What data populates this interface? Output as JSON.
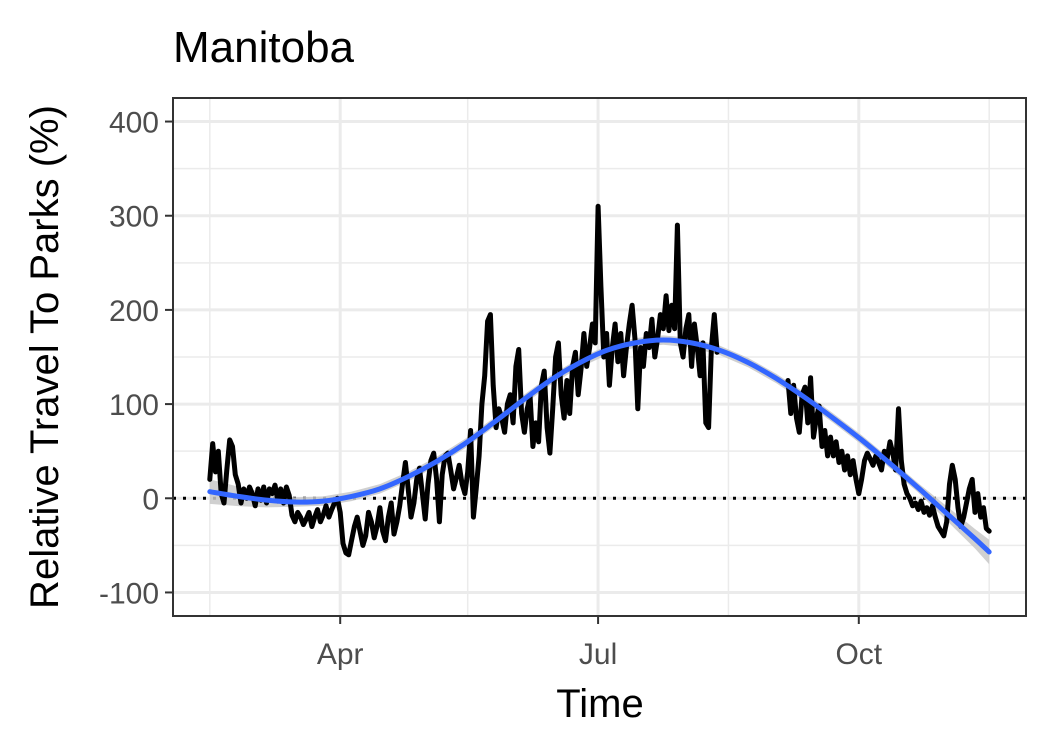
{
  "chart_data": {
    "type": "line",
    "title": "Manitoba",
    "xlabel": "Time",
    "ylabel": "Relative Travel To Parks (%)",
    "ylim": [
      -125,
      425
    ],
    "xlim": [
      "2020-02-02",
      "2020-11-29"
    ],
    "grid": true,
    "x_ticks": [
      {
        "date": "2020-04-01",
        "label": "Apr"
      },
      {
        "date": "2020-07-01",
        "label": "Jul"
      },
      {
        "date": "2020-10-01",
        "label": "Oct"
      }
    ],
    "y_ticks": [
      {
        "value": 400,
        "label": "400"
      },
      {
        "value": 300,
        "label": "300"
      },
      {
        "value": 200,
        "label": "200"
      },
      {
        "value": 100,
        "label": "100"
      },
      {
        "value": 0,
        "label": "0"
      },
      {
        "value": -100,
        "label": "-100"
      }
    ],
    "reference_line": {
      "y": 0,
      "style": "dotted"
    },
    "colors": {
      "raw": "#000000",
      "smooth": "#3366ff",
      "band": "#c8c8c8",
      "grid": "#ebebeb"
    },
    "series": [
      {
        "kind": "raw",
        "points": [
          [
            "2020-02-15",
            20
          ],
          [
            "2020-02-16",
            58
          ],
          [
            "2020-02-17",
            28
          ],
          [
            "2020-02-18",
            50
          ],
          [
            "2020-02-19",
            5
          ],
          [
            "2020-02-20",
            -5
          ],
          [
            "2020-02-21",
            30
          ],
          [
            "2020-02-22",
            62
          ],
          [
            "2020-02-23",
            55
          ],
          [
            "2020-02-24",
            25
          ],
          [
            "2020-02-25",
            15
          ],
          [
            "2020-02-26",
            -5
          ],
          [
            "2020-02-27",
            10
          ],
          [
            "2020-02-28",
            0
          ],
          [
            "2020-02-29",
            12
          ],
          [
            "2020-03-01",
            5
          ],
          [
            "2020-03-02",
            -8
          ],
          [
            "2020-03-03",
            10
          ],
          [
            "2020-03-04",
            -2
          ],
          [
            "2020-03-05",
            12
          ],
          [
            "2020-03-06",
            -5
          ],
          [
            "2020-03-07",
            10
          ],
          [
            "2020-03-08",
            5
          ],
          [
            "2020-03-09",
            14
          ],
          [
            "2020-03-10",
            -3
          ],
          [
            "2020-03-11",
            10
          ],
          [
            "2020-03-12",
            -5
          ],
          [
            "2020-03-13",
            12
          ],
          [
            "2020-03-14",
            3
          ],
          [
            "2020-03-15",
            -18
          ],
          [
            "2020-03-16",
            -25
          ],
          [
            "2020-03-17",
            -15
          ],
          [
            "2020-03-18",
            -20
          ],
          [
            "2020-03-19",
            -28
          ],
          [
            "2020-03-20",
            -22
          ],
          [
            "2020-03-21",
            -15
          ],
          [
            "2020-03-22",
            -30
          ],
          [
            "2020-03-23",
            -20
          ],
          [
            "2020-03-24",
            -12
          ],
          [
            "2020-03-25",
            -25
          ],
          [
            "2020-03-26",
            -18
          ],
          [
            "2020-03-27",
            -8
          ],
          [
            "2020-03-28",
            -20
          ],
          [
            "2020-03-29",
            -12
          ],
          [
            "2020-03-30",
            -5
          ],
          [
            "2020-03-31",
            0
          ],
          [
            "2020-04-01",
            -15
          ],
          [
            "2020-04-02",
            -48
          ],
          [
            "2020-04-03",
            -58
          ],
          [
            "2020-04-04",
            -60
          ],
          [
            "2020-04-05",
            -45
          ],
          [
            "2020-04-06",
            -30
          ],
          [
            "2020-04-07",
            -20
          ],
          [
            "2020-04-08",
            -35
          ],
          [
            "2020-04-09",
            -50
          ],
          [
            "2020-04-10",
            -40
          ],
          [
            "2020-04-11",
            -15
          ],
          [
            "2020-04-12",
            -25
          ],
          [
            "2020-04-13",
            -42
          ],
          [
            "2020-04-14",
            -30
          ],
          [
            "2020-04-15",
            -10
          ],
          [
            "2020-04-16",
            -35
          ],
          [
            "2020-04-17",
            -45
          ],
          [
            "2020-04-18",
            -20
          ],
          [
            "2020-04-19",
            -5
          ],
          [
            "2020-04-20",
            -38
          ],
          [
            "2020-04-21",
            -25
          ],
          [
            "2020-04-22",
            -8
          ],
          [
            "2020-04-23",
            15
          ],
          [
            "2020-04-24",
            38
          ],
          [
            "2020-04-25",
            10
          ],
          [
            "2020-04-26",
            -20
          ],
          [
            "2020-04-27",
            -5
          ],
          [
            "2020-04-28",
            20
          ],
          [
            "2020-04-29",
            32
          ],
          [
            "2020-04-30",
            5
          ],
          [
            "2020-05-01",
            -22
          ],
          [
            "2020-05-02",
            15
          ],
          [
            "2020-05-03",
            40
          ],
          [
            "2020-05-04",
            48
          ],
          [
            "2020-05-05",
            20
          ],
          [
            "2020-05-06",
            -25
          ],
          [
            "2020-05-07",
            25
          ],
          [
            "2020-05-08",
            45
          ],
          [
            "2020-05-09",
            48
          ],
          [
            "2020-05-10",
            30
          ],
          [
            "2020-05-11",
            10
          ],
          [
            "2020-05-12",
            22
          ],
          [
            "2020-05-13",
            35
          ],
          [
            "2020-05-14",
            15
          ],
          [
            "2020-05-15",
            5
          ],
          [
            "2020-05-16",
            28
          ],
          [
            "2020-05-17",
            72
          ],
          [
            "2020-05-18",
            -20
          ],
          [
            "2020-05-19",
            10
          ],
          [
            "2020-05-20",
            45
          ],
          [
            "2020-05-21",
            100
          ],
          [
            "2020-05-22",
            130
          ],
          [
            "2020-05-23",
            188
          ],
          [
            "2020-05-24",
            195
          ],
          [
            "2020-05-25",
            120
          ],
          [
            "2020-05-26",
            75
          ],
          [
            "2020-05-27",
            95
          ],
          [
            "2020-05-28",
            85
          ],
          [
            "2020-05-29",
            70
          ],
          [
            "2020-05-30",
            100
          ],
          [
            "2020-05-31",
            110
          ],
          [
            "2020-06-01",
            80
          ],
          [
            "2020-06-02",
            140
          ],
          [
            "2020-06-03",
            158
          ],
          [
            "2020-06-04",
            90
          ],
          [
            "2020-06-05",
            70
          ],
          [
            "2020-06-06",
            95
          ],
          [
            "2020-06-07",
            108
          ],
          [
            "2020-06-08",
            55
          ],
          [
            "2020-06-09",
            80
          ],
          [
            "2020-06-10",
            60
          ],
          [
            "2020-06-11",
            120
          ],
          [
            "2020-06-12",
            135
          ],
          [
            "2020-06-13",
            75
          ],
          [
            "2020-06-14",
            48
          ],
          [
            "2020-06-15",
            95
          ],
          [
            "2020-06-16",
            150
          ],
          [
            "2020-06-17",
            165
          ],
          [
            "2020-06-18",
            110
          ],
          [
            "2020-06-19",
            85
          ],
          [
            "2020-06-20",
            125
          ],
          [
            "2020-06-21",
            90
          ],
          [
            "2020-06-22",
            140
          ],
          [
            "2020-06-23",
            155
          ],
          [
            "2020-06-24",
            110
          ],
          [
            "2020-06-25",
            138
          ],
          [
            "2020-06-26",
            175
          ],
          [
            "2020-06-27",
            140
          ],
          [
            "2020-06-28",
            160
          ],
          [
            "2020-06-29",
            185
          ],
          [
            "2020-06-30",
            165
          ],
          [
            "2020-07-01",
            310
          ],
          [
            "2020-07-02",
            225
          ],
          [
            "2020-07-03",
            150
          ],
          [
            "2020-07-04",
            175
          ],
          [
            "2020-07-05",
            120
          ],
          [
            "2020-07-06",
            160
          ],
          [
            "2020-07-07",
            185
          ],
          [
            "2020-07-08",
            145
          ],
          [
            "2020-07-09",
            175
          ],
          [
            "2020-07-10",
            130
          ],
          [
            "2020-07-11",
            160
          ],
          [
            "2020-07-12",
            185
          ],
          [
            "2020-07-13",
            205
          ],
          [
            "2020-07-14",
            170
          ],
          [
            "2020-07-15",
            95
          ],
          [
            "2020-07-16",
            160
          ],
          [
            "2020-07-17",
            140
          ],
          [
            "2020-07-18",
            175
          ],
          [
            "2020-07-19",
            160
          ],
          [
            "2020-07-20",
            190
          ],
          [
            "2020-07-21",
            150
          ],
          [
            "2020-07-22",
            170
          ],
          [
            "2020-07-23",
            195
          ],
          [
            "2020-07-24",
            180
          ],
          [
            "2020-07-25",
            215
          ],
          [
            "2020-07-26",
            178
          ],
          [
            "2020-07-27",
            205
          ],
          [
            "2020-07-28",
            180
          ],
          [
            "2020-07-29",
            290
          ],
          [
            "2020-07-30",
            165
          ],
          [
            "2020-07-31",
            150
          ],
          [
            "2020-08-01",
            180
          ],
          [
            "2020-08-02",
            195
          ],
          [
            "2020-08-03",
            140
          ],
          [
            "2020-08-04",
            185
          ],
          [
            "2020-08-05",
            160
          ],
          [
            "2020-08-06",
            130
          ],
          [
            "2020-08-07",
            165
          ],
          [
            "2020-08-08",
            80
          ],
          [
            "2020-08-09",
            75
          ],
          [
            "2020-08-10",
            160
          ],
          [
            "2020-08-11",
            195
          ],
          [
            "2020-08-12",
            155
          ],
          [
            "2020-09-06",
            125
          ],
          [
            "2020-09-07",
            90
          ],
          [
            "2020-09-08",
            120
          ],
          [
            "2020-09-09",
            85
          ],
          [
            "2020-09-10",
            70
          ],
          [
            "2020-09-11",
            110
          ],
          [
            "2020-09-12",
            118
          ],
          [
            "2020-09-13",
            80
          ],
          [
            "2020-09-14",
            128
          ],
          [
            "2020-09-15",
            65
          ],
          [
            "2020-09-16",
            85
          ],
          [
            "2020-09-17",
            98
          ],
          [
            "2020-09-18",
            55
          ],
          [
            "2020-09-19",
            72
          ],
          [
            "2020-09-20",
            45
          ],
          [
            "2020-09-21",
            65
          ],
          [
            "2020-09-22",
            45
          ],
          [
            "2020-09-23",
            60
          ],
          [
            "2020-09-24",
            38
          ],
          [
            "2020-09-25",
            50
          ],
          [
            "2020-09-26",
            30
          ],
          [
            "2020-09-27",
            45
          ],
          [
            "2020-09-28",
            25
          ],
          [
            "2020-09-29",
            40
          ],
          [
            "2020-09-30",
            20
          ],
          [
            "2020-10-01",
            5
          ],
          [
            "2020-10-02",
            20
          ],
          [
            "2020-10-03",
            40
          ],
          [
            "2020-10-04",
            48
          ],
          [
            "2020-10-05",
            42
          ],
          [
            "2020-10-06",
            35
          ],
          [
            "2020-10-07",
            45
          ],
          [
            "2020-10-08",
            38
          ],
          [
            "2020-10-09",
            30
          ],
          [
            "2020-10-10",
            50
          ],
          [
            "2020-10-11",
            42
          ],
          [
            "2020-10-12",
            60
          ],
          [
            "2020-10-13",
            48
          ],
          [
            "2020-10-14",
            30
          ],
          [
            "2020-10-15",
            95
          ],
          [
            "2020-10-16",
            40
          ],
          [
            "2020-10-17",
            15
          ],
          [
            "2020-10-18",
            5
          ],
          [
            "2020-10-19",
            0
          ],
          [
            "2020-10-20",
            -8
          ],
          [
            "2020-10-21",
            -5
          ],
          [
            "2020-10-22",
            -12
          ],
          [
            "2020-10-23",
            -3
          ],
          [
            "2020-10-24",
            -15
          ],
          [
            "2020-10-25",
            -10
          ],
          [
            "2020-10-26",
            -18
          ],
          [
            "2020-10-27",
            -8
          ],
          [
            "2020-10-28",
            -20
          ],
          [
            "2020-10-29",
            -30
          ],
          [
            "2020-10-30",
            -35
          ],
          [
            "2020-10-31",
            -40
          ],
          [
            "2020-11-01",
            -25
          ],
          [
            "2020-11-02",
            15
          ],
          [
            "2020-11-03",
            35
          ],
          [
            "2020-11-04",
            20
          ],
          [
            "2020-11-05",
            -10
          ],
          [
            "2020-11-06",
            -30
          ],
          [
            "2020-11-07",
            -20
          ],
          [
            "2020-11-08",
            -5
          ],
          [
            "2020-11-09",
            10
          ],
          [
            "2020-11-10",
            20
          ],
          [
            "2020-11-11",
            -15
          ],
          [
            "2020-11-12",
            5
          ],
          [
            "2020-11-13",
            -20
          ],
          [
            "2020-11-14",
            -10
          ],
          [
            "2020-11-15",
            -32
          ],
          [
            "2020-11-16",
            -35
          ]
        ]
      },
      {
        "kind": "smooth",
        "points": [
          [
            "2020-02-15",
            7
          ],
          [
            "2020-02-25",
            2
          ],
          [
            "2020-03-06",
            -2
          ],
          [
            "2020-03-16",
            -4
          ],
          [
            "2020-03-26",
            -3
          ],
          [
            "2020-04-05",
            2
          ],
          [
            "2020-04-15",
            10
          ],
          [
            "2020-04-25",
            23
          ],
          [
            "2020-05-05",
            39
          ],
          [
            "2020-05-15",
            58
          ],
          [
            "2020-05-25",
            80
          ],
          [
            "2020-06-04",
            103
          ],
          [
            "2020-06-14",
            125
          ],
          [
            "2020-06-24",
            143
          ],
          [
            "2020-07-04",
            157
          ],
          [
            "2020-07-14",
            165
          ],
          [
            "2020-07-24",
            168
          ],
          [
            "2020-08-03",
            165
          ],
          [
            "2020-08-13",
            157
          ],
          [
            "2020-08-23",
            144
          ],
          [
            "2020-09-02",
            127
          ],
          [
            "2020-09-12",
            107
          ],
          [
            "2020-09-22",
            85
          ],
          [
            "2020-10-02",
            62
          ],
          [
            "2020-10-12",
            37
          ],
          [
            "2020-10-22",
            11
          ],
          [
            "2020-11-01",
            -16
          ],
          [
            "2020-11-11",
            -43
          ],
          [
            "2020-11-16",
            -57
          ]
        ]
      }
    ]
  }
}
